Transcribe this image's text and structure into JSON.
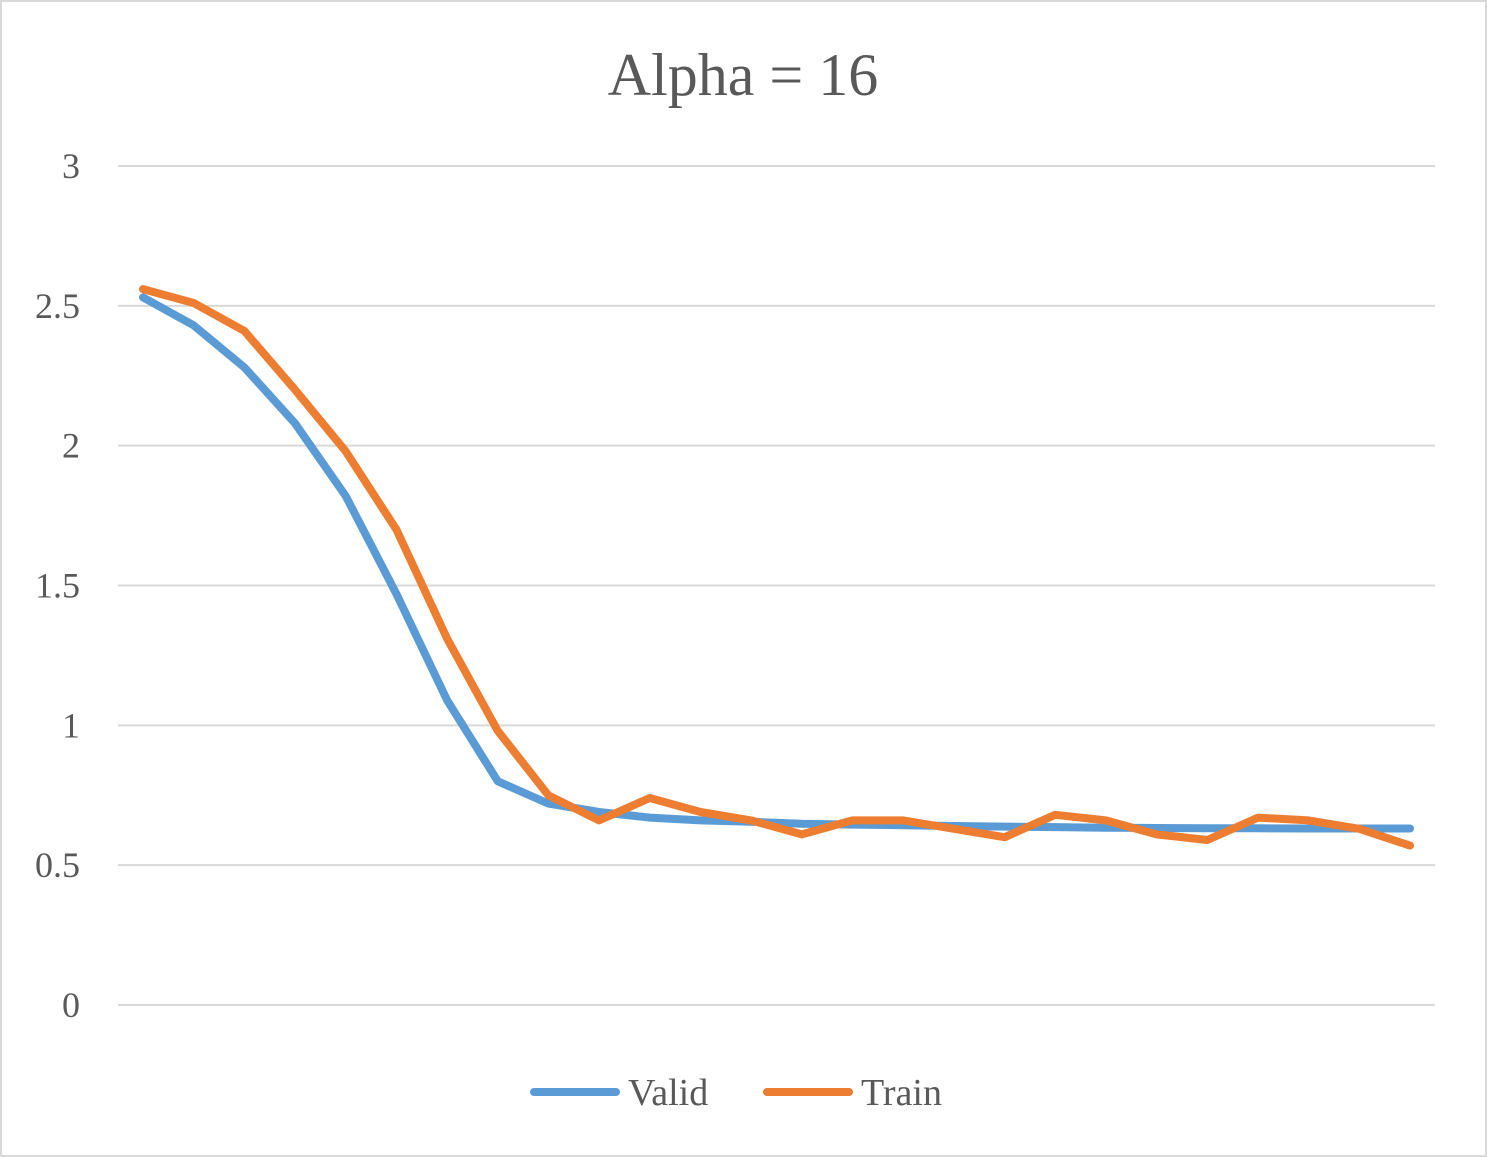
{
  "chart_data": {
    "type": "line",
    "title": "Alpha = 16",
    "xlabel": "",
    "ylabel": "",
    "ylim": [
      0,
      3
    ],
    "yticks": [
      0,
      0.5,
      1,
      1.5,
      2,
      2.5,
      3
    ],
    "ytick_labels": [
      "0",
      "0.5",
      "1",
      "1.5",
      "2",
      "2.5",
      "3"
    ],
    "grid": true,
    "legend_position": "bottom",
    "x": [
      1,
      2,
      3,
      4,
      5,
      6,
      7,
      8,
      9,
      10,
      11,
      12,
      13,
      14,
      15,
      16,
      17,
      18,
      19,
      20,
      21,
      22,
      23,
      24,
      25,
      26
    ],
    "series": [
      {
        "name": "Valid",
        "color": "#5b9bd5",
        "values": [
          2.53,
          2.43,
          2.28,
          2.08,
          1.82,
          1.47,
          1.09,
          0.8,
          0.72,
          0.69,
          0.67,
          0.66,
          0.655,
          0.648,
          0.645,
          0.643,
          0.64,
          0.638,
          0.636,
          0.634,
          0.633,
          0.632,
          0.632,
          0.631,
          0.631,
          0.631
        ]
      },
      {
        "name": "Train",
        "color": "#ed7d31",
        "values": [
          2.56,
          2.51,
          2.41,
          2.2,
          1.98,
          1.7,
          1.31,
          0.98,
          0.75,
          0.66,
          0.74,
          0.69,
          0.66,
          0.61,
          0.66,
          0.66,
          0.63,
          0.6,
          0.68,
          0.66,
          0.61,
          0.59,
          0.67,
          0.66,
          0.63,
          0.57
        ]
      }
    ]
  }
}
